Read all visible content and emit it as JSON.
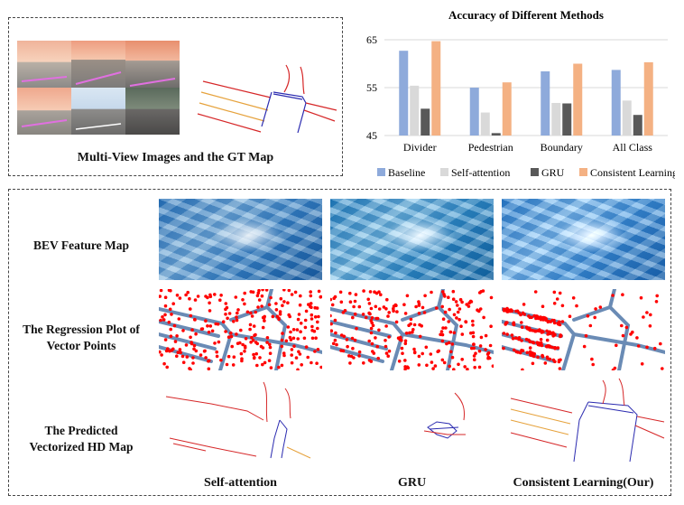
{
  "top_left": {
    "caption": "Multi-View Images and the GT Map"
  },
  "chart_data": {
    "type": "bar",
    "title": "Accuracy of Different Methods",
    "categories": [
      "Divider",
      "Pedestrian",
      "Boundary",
      "All Class"
    ],
    "series": [
      {
        "name": "Baseline",
        "color": "#8eaadb",
        "values": [
          62.7,
          55.0,
          58.4,
          58.7
        ]
      },
      {
        "name": "Self-attention",
        "color": "#d9d9d9",
        "values": [
          55.4,
          49.8,
          51.8,
          52.3
        ]
      },
      {
        "name": "GRU",
        "color": "#595959",
        "values": [
          50.6,
          45.5,
          51.7,
          49.3
        ]
      },
      {
        "name": "Consistent Learning",
        "color": "#f4b183",
        "values": [
          64.7,
          56.1,
          60.0,
          60.3
        ]
      }
    ],
    "yticks": [
      "65",
      "55",
      "45"
    ],
    "ylim": [
      45,
      65
    ],
    "grid": true,
    "legend": "bottom"
  },
  "rows": {
    "bev": "BEV Feature Map",
    "regression_line1": "The Regression Plot of",
    "regression_line2": "Vector Points",
    "predicted_line1": "The Predicted",
    "predicted_line2": "Vectorized  HD Map"
  },
  "columns": {
    "col1": "Self-attention",
    "col2": "GRU",
    "col3": "Consistent Learning(Our)"
  },
  "colors": {
    "divider": "#d62728",
    "pedestrian": "#2b2bb0",
    "boundary": "#e6a23c",
    "points": "#ff0000",
    "gt_vector": "#6a8bb5"
  }
}
